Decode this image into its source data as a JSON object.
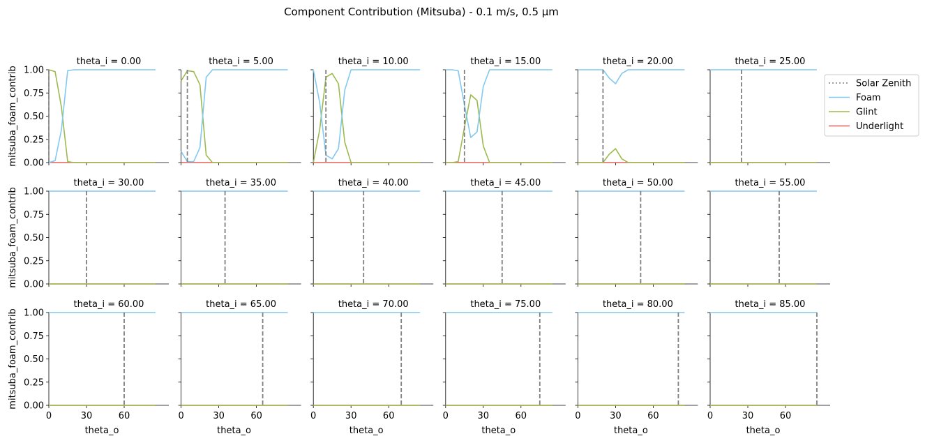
{
  "figure_title": "Component Contribution (Mitsuba) - 0.1 m/s, 0.5 µm",
  "chart_data": {
    "type": "line",
    "title": "Component Contribution (Mitsuba) - 0.1 m/s, 0.5 µm",
    "xlabel": "theta_o",
    "ylabel": "mitsuba_foam_contrib",
    "xlim": [
      0,
      90
    ],
    "ylim": [
      0,
      1
    ],
    "xticks": [
      0,
      30,
      60
    ],
    "yticks": [
      0.0,
      0.25,
      0.5,
      0.75,
      1.0
    ],
    "ytick_labels": [
      "0.00",
      "0.25",
      "0.50",
      "0.75",
      "1.00"
    ],
    "grid": false,
    "legend_position": "right",
    "legend": [
      {
        "name": "Solar Zenith",
        "color": "#808080",
        "style": "dotted"
      },
      {
        "name": "Foam",
        "color": "#81C9F1",
        "style": "solid"
      },
      {
        "name": "Glint",
        "color": "#9CBA50",
        "style": "solid"
      },
      {
        "name": "Underlight",
        "color": "#E0605A",
        "style": "solid"
      }
    ],
    "x": [
      0,
      5,
      10,
      15,
      20,
      25,
      30,
      35,
      40,
      45,
      50,
      55,
      60,
      65,
      70,
      75,
      80,
      85
    ],
    "panels": [
      {
        "title": "theta_i = 0.00",
        "solar_zenith": 0,
        "foam": [
          0,
          0.02,
          0.35,
          0.99,
          1,
          1,
          1,
          1,
          1,
          1,
          1,
          1,
          1,
          1,
          1,
          1,
          1,
          1
        ],
        "glint": [
          1,
          0.98,
          0.6,
          0.01,
          0,
          0,
          0,
          0,
          0,
          0,
          0,
          0,
          0,
          0,
          0,
          0,
          0,
          0
        ],
        "underlight": [
          0,
          0,
          0,
          0,
          0,
          0,
          0,
          0,
          0,
          0,
          0,
          0,
          0,
          0,
          0,
          0,
          0,
          0
        ]
      },
      {
        "title": "theta_i = 5.00",
        "solar_zenith": 5,
        "foam": [
          0.12,
          0.01,
          0.01,
          0.16,
          0.92,
          1,
          1,
          1,
          1,
          1,
          1,
          1,
          1,
          1,
          1,
          1,
          1,
          1
        ],
        "glint": [
          0.88,
          0.99,
          0.98,
          0.84,
          0.08,
          0,
          0,
          0,
          0,
          0,
          0,
          0,
          0,
          0,
          0,
          0,
          0,
          0
        ],
        "underlight": [
          0,
          0,
          0,
          0,
          0,
          0,
          0,
          0,
          0,
          0,
          0,
          0,
          0,
          0,
          0,
          0,
          0,
          0
        ]
      },
      {
        "title": "theta_i = 10.00",
        "solar_zenith": 10,
        "foam": [
          1,
          0.65,
          0.08,
          0.04,
          0.15,
          0.78,
          1,
          1,
          1,
          1,
          1,
          1,
          1,
          1,
          1,
          1,
          1,
          1
        ],
        "glint": [
          0,
          0.35,
          0.92,
          0.96,
          0.85,
          0.22,
          0,
          0,
          0,
          0,
          0,
          0,
          0,
          0,
          0,
          0,
          0,
          0
        ],
        "underlight": [
          0,
          0,
          0,
          0,
          0,
          0,
          0,
          0,
          0,
          0,
          0,
          0,
          0,
          0,
          0,
          0,
          0,
          0
        ]
      },
      {
        "title": "theta_i = 15.00",
        "solar_zenith": 15,
        "foam": [
          1,
          1,
          0.99,
          0.62,
          0.27,
          0.33,
          0.82,
          1,
          1,
          1,
          1,
          1,
          1,
          1,
          1,
          1,
          1,
          1
        ],
        "glint": [
          0,
          0,
          0.01,
          0.38,
          0.73,
          0.67,
          0.18,
          0,
          0,
          0,
          0,
          0,
          0,
          0,
          0,
          0,
          0,
          0
        ],
        "underlight": [
          0,
          0,
          0,
          0,
          0,
          0,
          0,
          0,
          0,
          0,
          0,
          0,
          0,
          0,
          0,
          0,
          0,
          0
        ]
      },
      {
        "title": "theta_i = 20.00",
        "solar_zenith": 20,
        "foam": [
          1,
          1,
          1,
          1,
          1,
          0.91,
          0.85,
          0.96,
          1,
          1,
          1,
          1,
          1,
          1,
          1,
          1,
          1,
          1
        ],
        "glint": [
          0,
          0,
          0,
          0,
          0,
          0.09,
          0.15,
          0.04,
          0,
          0,
          0,
          0,
          0,
          0,
          0,
          0,
          0,
          0
        ],
        "underlight": [
          0,
          0,
          0,
          0,
          0,
          0,
          0,
          0,
          0,
          0,
          0,
          0,
          0,
          0,
          0,
          0,
          0,
          0
        ]
      },
      {
        "title": "theta_i = 25.00",
        "solar_zenith": 25,
        "foam": [
          1,
          1,
          1,
          1,
          1,
          1,
          1,
          1,
          1,
          1,
          1,
          1,
          1,
          1,
          1,
          1,
          1,
          1
        ],
        "glint": [
          0,
          0,
          0,
          0,
          0,
          0,
          0,
          0,
          0,
          0,
          0,
          0,
          0,
          0,
          0,
          0,
          0,
          0
        ],
        "underlight": [
          0,
          0,
          0,
          0,
          0,
          0,
          0,
          0,
          0,
          0,
          0,
          0,
          0,
          0,
          0,
          0,
          0,
          0
        ]
      },
      {
        "title": "theta_i = 30.00",
        "solar_zenith": 30,
        "foam": [
          1,
          1,
          1,
          1,
          1,
          1,
          1,
          1,
          1,
          1,
          1,
          1,
          1,
          1,
          1,
          1,
          1,
          1
        ],
        "glint": [
          0,
          0,
          0,
          0,
          0,
          0,
          0,
          0,
          0,
          0,
          0,
          0,
          0,
          0,
          0,
          0,
          0,
          0
        ],
        "underlight": [
          0,
          0,
          0,
          0,
          0,
          0,
          0,
          0,
          0,
          0,
          0,
          0,
          0,
          0,
          0,
          0,
          0,
          0
        ]
      },
      {
        "title": "theta_i = 35.00",
        "solar_zenith": 35,
        "foam": [
          1,
          1,
          1,
          1,
          1,
          1,
          1,
          1,
          1,
          1,
          1,
          1,
          1,
          1,
          1,
          1,
          1,
          1
        ],
        "glint": [
          0,
          0,
          0,
          0,
          0,
          0,
          0,
          0,
          0,
          0,
          0,
          0,
          0,
          0,
          0,
          0,
          0,
          0
        ],
        "underlight": [
          0,
          0,
          0,
          0,
          0,
          0,
          0,
          0,
          0,
          0,
          0,
          0,
          0,
          0,
          0,
          0,
          0,
          0
        ]
      },
      {
        "title": "theta_i = 40.00",
        "solar_zenith": 40,
        "foam": [
          1,
          1,
          1,
          1,
          1,
          1,
          1,
          1,
          1,
          1,
          1,
          1,
          1,
          1,
          1,
          1,
          1,
          1
        ],
        "glint": [
          0,
          0,
          0,
          0,
          0,
          0,
          0,
          0,
          0,
          0,
          0,
          0,
          0,
          0,
          0,
          0,
          0,
          0
        ],
        "underlight": [
          0,
          0,
          0,
          0,
          0,
          0,
          0,
          0,
          0,
          0,
          0,
          0,
          0,
          0,
          0,
          0,
          0,
          0
        ]
      },
      {
        "title": "theta_i = 45.00",
        "solar_zenith": 45,
        "foam": [
          1,
          1,
          1,
          1,
          1,
          1,
          1,
          1,
          1,
          1,
          1,
          1,
          1,
          1,
          1,
          1,
          1,
          1
        ],
        "glint": [
          0,
          0,
          0,
          0,
          0,
          0,
          0,
          0,
          0,
          0,
          0,
          0,
          0,
          0,
          0,
          0,
          0,
          0
        ],
        "underlight": [
          0,
          0,
          0,
          0,
          0,
          0,
          0,
          0,
          0,
          0,
          0,
          0,
          0,
          0,
          0,
          0,
          0,
          0
        ]
      },
      {
        "title": "theta_i = 50.00",
        "solar_zenith": 50,
        "foam": [
          1,
          1,
          1,
          1,
          1,
          1,
          1,
          1,
          1,
          1,
          1,
          1,
          1,
          1,
          1,
          1,
          1,
          1
        ],
        "glint": [
          0,
          0,
          0,
          0,
          0,
          0,
          0,
          0,
          0,
          0,
          0,
          0,
          0,
          0,
          0,
          0,
          0,
          0
        ],
        "underlight": [
          0,
          0,
          0,
          0,
          0,
          0,
          0,
          0,
          0,
          0,
          0,
          0,
          0,
          0,
          0,
          0,
          0,
          0
        ]
      },
      {
        "title": "theta_i = 55.00",
        "solar_zenith": 55,
        "foam": [
          1,
          1,
          1,
          1,
          1,
          1,
          1,
          1,
          1,
          1,
          1,
          1,
          1,
          1,
          1,
          1,
          1,
          1
        ],
        "glint": [
          0,
          0,
          0,
          0,
          0,
          0,
          0,
          0,
          0,
          0,
          0,
          0,
          0,
          0,
          0,
          0,
          0,
          0
        ],
        "underlight": [
          0,
          0,
          0,
          0,
          0,
          0,
          0,
          0,
          0,
          0,
          0,
          0,
          0,
          0,
          0,
          0,
          0,
          0
        ]
      },
      {
        "title": "theta_i = 60.00",
        "solar_zenith": 60,
        "foam": [
          1,
          1,
          1,
          1,
          1,
          1,
          1,
          1,
          1,
          1,
          1,
          1,
          1,
          1,
          1,
          1,
          1,
          1
        ],
        "glint": [
          0,
          0,
          0,
          0,
          0,
          0,
          0,
          0,
          0,
          0,
          0,
          0,
          0,
          0,
          0,
          0,
          0,
          0
        ],
        "underlight": [
          0,
          0,
          0,
          0,
          0,
          0,
          0,
          0,
          0,
          0,
          0,
          0,
          0,
          0,
          0,
          0,
          0,
          0
        ]
      },
      {
        "title": "theta_i = 65.00",
        "solar_zenith": 65,
        "foam": [
          1,
          1,
          1,
          1,
          1,
          1,
          1,
          1,
          1,
          1,
          1,
          1,
          1,
          1,
          1,
          1,
          1,
          1
        ],
        "glint": [
          0,
          0,
          0,
          0,
          0,
          0,
          0,
          0,
          0,
          0,
          0,
          0,
          0,
          0,
          0,
          0,
          0,
          0
        ],
        "underlight": [
          0,
          0,
          0,
          0,
          0,
          0,
          0,
          0,
          0,
          0,
          0,
          0,
          0,
          0,
          0,
          0,
          0,
          0
        ]
      },
      {
        "title": "theta_i = 70.00",
        "solar_zenith": 70,
        "foam": [
          1,
          1,
          1,
          1,
          1,
          1,
          1,
          1,
          1,
          1,
          1,
          1,
          1,
          1,
          1,
          1,
          1,
          1
        ],
        "glint": [
          0,
          0,
          0,
          0,
          0,
          0,
          0,
          0,
          0,
          0,
          0,
          0,
          0,
          0,
          0,
          0,
          0,
          0
        ],
        "underlight": [
          0,
          0,
          0,
          0,
          0,
          0,
          0,
          0,
          0,
          0,
          0,
          0,
          0,
          0,
          0,
          0,
          0,
          0
        ]
      },
      {
        "title": "theta_i = 75.00",
        "solar_zenith": 75,
        "foam": [
          1,
          1,
          1,
          1,
          1,
          1,
          1,
          1,
          1,
          1,
          1,
          1,
          1,
          1,
          1,
          1,
          1,
          1
        ],
        "glint": [
          0,
          0,
          0,
          0,
          0,
          0,
          0,
          0,
          0,
          0,
          0,
          0,
          0,
          0,
          0,
          0,
          0,
          0
        ],
        "underlight": [
          0,
          0,
          0,
          0,
          0,
          0,
          0,
          0,
          0,
          0,
          0,
          0,
          0,
          0,
          0,
          0,
          0,
          0
        ]
      },
      {
        "title": "theta_i = 80.00",
        "solar_zenith": 80,
        "foam": [
          1,
          1,
          1,
          1,
          1,
          1,
          1,
          1,
          1,
          1,
          1,
          1,
          1,
          1,
          1,
          1,
          1,
          1
        ],
        "glint": [
          0,
          0,
          0,
          0,
          0,
          0,
          0,
          0,
          0,
          0,
          0,
          0,
          0,
          0,
          0,
          0,
          0,
          0
        ],
        "underlight": [
          0,
          0,
          0,
          0,
          0,
          0,
          0,
          0,
          0,
          0,
          0,
          0,
          0,
          0,
          0,
          0,
          0,
          0
        ]
      },
      {
        "title": "theta_i = 85.00",
        "solar_zenith": 85,
        "foam": [
          1,
          1,
          1,
          1,
          1,
          1,
          1,
          1,
          1,
          1,
          1,
          1,
          1,
          1,
          1,
          1,
          1,
          1
        ],
        "glint": [
          0,
          0,
          0,
          0,
          0,
          0,
          0,
          0,
          0,
          0,
          0,
          0,
          0,
          0,
          0,
          0,
          0,
          0
        ],
        "underlight": [
          0,
          0,
          0,
          0,
          0,
          0,
          0,
          0,
          0,
          0,
          0,
          0,
          0,
          0,
          0,
          0,
          0,
          0
        ]
      }
    ]
  }
}
